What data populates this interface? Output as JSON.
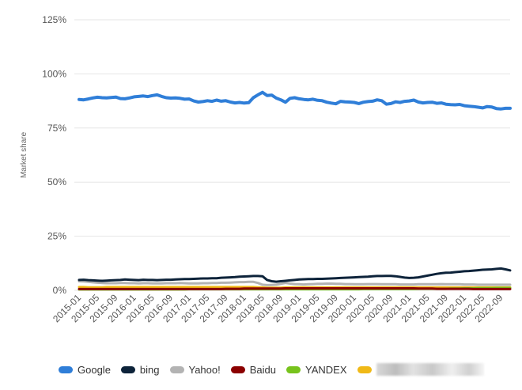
{
  "chart_data": {
    "type": "line",
    "ylabel": "Market share",
    "xlabel": "",
    "ylim": [
      0,
      125
    ],
    "y_ticks": [
      "0%",
      "25%",
      "50%",
      "75%",
      "100%",
      "125%"
    ],
    "y_tick_values": [
      0,
      25,
      50,
      75,
      100,
      125
    ],
    "grid": "horizontal",
    "legend_position": "bottom",
    "x_tick_labels": [
      "2015-01",
      "2015-05",
      "2015-09",
      "2016-01",
      "2016-05",
      "2016-09",
      "2017-01",
      "2017-05",
      "2017-09",
      "2018-01",
      "2018-05",
      "2018-09",
      "2019-01",
      "2019-05",
      "2019-09",
      "2020-01",
      "2020-05",
      "2020-09",
      "2021-01",
      "2021-05",
      "2021-09",
      "2022-01",
      "2022-05",
      "2022-09"
    ],
    "x_tick_index": [
      0,
      4,
      8,
      12,
      16,
      20,
      24,
      28,
      32,
      36,
      40,
      44,
      48,
      52,
      56,
      60,
      64,
      68,
      72,
      76,
      80,
      84,
      88,
      92
    ],
    "x_start": "2015-01",
    "series": [
      {
        "name": "Google",
        "color": "#2f7ed8",
        "values": [
          88.2,
          88.0,
          88.4,
          88.9,
          89.2,
          89.0,
          88.9,
          89.1,
          89.3,
          88.6,
          88.5,
          88.9,
          89.4,
          89.6,
          89.8,
          89.5,
          90.0,
          90.3,
          89.6,
          89.0,
          88.8,
          88.9,
          88.7,
          88.3,
          88.4,
          87.5,
          87.0,
          87.2,
          87.6,
          87.3,
          87.9,
          87.4,
          87.6,
          87.0,
          86.6,
          86.8,
          86.5,
          86.7,
          89.0,
          90.3,
          91.5,
          90.0,
          90.2,
          88.8,
          88.0,
          86.9,
          88.7,
          89.0,
          88.5,
          88.2,
          88.0,
          88.3,
          87.8,
          87.6,
          86.9,
          86.5,
          86.2,
          87.3,
          87.1,
          87.0,
          86.8,
          86.3,
          86.9,
          87.2,
          87.4,
          88.0,
          87.6,
          86.0,
          86.3,
          87.1,
          86.8,
          87.3,
          87.5,
          87.9,
          87.0,
          86.6,
          86.8,
          86.9,
          86.4,
          86.6,
          86.0,
          85.8,
          85.7,
          85.9,
          85.3,
          85.1,
          84.9,
          84.6,
          84.3,
          84.9,
          84.7,
          84.0,
          83.8,
          84.1,
          84.1
        ]
      },
      {
        "name": "bing",
        "color": "#0d233a",
        "values": [
          4.8,
          4.9,
          4.7,
          4.6,
          4.5,
          4.4,
          4.5,
          4.6,
          4.7,
          4.8,
          5.0,
          4.9,
          4.8,
          4.7,
          4.9,
          4.8,
          4.8,
          4.7,
          4.8,
          4.9,
          4.9,
          5.0,
          5.1,
          5.2,
          5.2,
          5.3,
          5.4,
          5.5,
          5.5,
          5.6,
          5.6,
          5.8,
          5.9,
          6.0,
          6.1,
          6.3,
          6.4,
          6.5,
          6.6,
          6.6,
          6.5,
          4.8,
          4.2,
          4.0,
          4.2,
          4.4,
          4.6,
          4.8,
          5.0,
          5.1,
          5.2,
          5.2,
          5.3,
          5.3,
          5.4,
          5.5,
          5.6,
          5.7,
          5.8,
          5.9,
          6.0,
          6.1,
          6.2,
          6.3,
          6.5,
          6.6,
          6.6,
          6.7,
          6.7,
          6.5,
          6.2,
          5.9,
          5.7,
          5.8,
          6.0,
          6.4,
          6.8,
          7.2,
          7.6,
          7.9,
          8.1,
          8.2,
          8.4,
          8.6,
          8.8,
          8.9,
          9.1,
          9.3,
          9.5,
          9.6,
          9.7,
          9.9,
          10.1,
          9.7,
          9.2
        ]
      },
      {
        "name": "Yahoo!",
        "color": "#b3b3b3",
        "values": [
          4.2,
          4.1,
          3.9,
          3.7,
          3.5,
          3.4,
          3.3,
          3.3,
          3.3,
          3.4,
          3.4,
          3.3,
          3.3,
          3.2,
          3.3,
          3.3,
          3.2,
          3.2,
          3.2,
          3.3,
          3.3,
          3.3,
          3.4,
          3.3,
          3.2,
          3.2,
          3.2,
          3.3,
          3.3,
          3.4,
          3.4,
          3.5,
          3.5,
          3.6,
          3.7,
          3.8,
          3.8,
          3.9,
          3.9,
          3.4,
          2.6,
          2.4,
          2.5,
          2.6,
          3.0,
          3.4,
          3.1,
          2.9,
          2.8,
          2.7,
          2.8,
          2.9,
          3.0,
          3.0,
          3.1,
          3.1,
          3.0,
          3.0,
          2.9,
          2.9,
          2.8,
          2.8,
          2.8,
          2.9,
          2.9,
          2.9,
          2.8,
          2.8,
          2.8,
          2.8,
          2.7,
          2.7,
          2.7,
          2.7,
          2.8,
          2.8,
          2.8,
          2.8,
          2.8,
          2.9,
          2.8,
          2.8,
          2.8,
          2.8,
          2.7,
          2.7,
          2.7,
          2.6,
          2.6,
          2.6,
          2.6,
          2.6,
          2.6,
          2.6,
          2.6
        ]
      },
      {
        "name": "Baidu",
        "color": "#8b0000",
        "values": [
          0.6,
          0.6,
          0.6,
          0.6,
          0.6,
          0.6,
          0.6,
          0.6,
          0.6,
          0.6,
          0.6,
          0.6,
          0.6,
          0.6,
          0.6,
          0.6,
          0.6,
          0.6,
          0.6,
          0.6,
          0.6,
          0.6,
          0.6,
          0.6,
          0.6,
          0.6,
          0.6,
          0.6,
          0.6,
          0.6,
          0.6,
          0.6,
          0.7,
          0.7,
          0.7,
          0.7,
          0.8,
          0.8,
          0.8,
          0.8,
          0.8,
          0.8,
          0.8,
          0.8,
          0.8,
          0.9,
          0.9,
          0.9,
          0.9,
          0.9,
          0.9,
          0.9,
          0.9,
          0.9,
          0.9,
          0.9,
          0.9,
          0.9,
          0.9,
          0.9,
          0.9,
          0.9,
          0.9,
          0.9,
          0.9,
          0.9,
          0.9,
          0.9,
          0.9,
          0.9,
          0.9,
          0.9,
          0.9,
          0.9,
          0.8,
          0.8,
          0.8,
          0.8,
          0.7,
          0.7,
          0.7,
          0.7,
          0.7,
          0.7,
          0.7,
          0.7,
          0.6,
          0.6,
          0.6,
          0.6,
          0.6,
          0.6,
          0.6,
          0.6,
          0.6
        ]
      },
      {
        "name": "YANDEX",
        "color": "#77c31c",
        "values": [
          0.4,
          0.4,
          0.4,
          0.4,
          0.4,
          0.4,
          0.4,
          0.4,
          0.4,
          0.4,
          0.4,
          0.4,
          0.4,
          0.4,
          0.4,
          0.4,
          0.4,
          0.4,
          0.4,
          0.4,
          0.4,
          0.4,
          0.4,
          0.4,
          0.5,
          0.5,
          0.5,
          0.5,
          0.5,
          0.5,
          0.5,
          0.5,
          0.5,
          0.5,
          0.5,
          0.5,
          0.5,
          0.5,
          0.5,
          0.5,
          0.5,
          0.5,
          0.5,
          0.5,
          0.5,
          0.5,
          0.5,
          0.5,
          0.5,
          0.5,
          0.5,
          0.5,
          0.5,
          0.5,
          0.5,
          0.5,
          0.5,
          0.5,
          0.5,
          0.5,
          0.5,
          0.5,
          0.6,
          0.6,
          0.6,
          0.6,
          0.6,
          0.6,
          0.6,
          0.6,
          0.6,
          0.6,
          0.6,
          0.6,
          0.7,
          0.7,
          0.7,
          0.7,
          0.7,
          0.7,
          0.7,
          0.8,
          0.8,
          0.8,
          0.9,
          0.9,
          0.9,
          1.0,
          1.0,
          1.0,
          1.0,
          1.1,
          1.1,
          1.1,
          1.1
        ]
      },
      {
        "name": "",
        "legend_obscured": true,
        "color": "#f0b917",
        "values": [
          1.5,
          1.5,
          1.4,
          1.4,
          1.4,
          1.4,
          1.5,
          1.5,
          1.5,
          1.5,
          1.5,
          1.5,
          1.5,
          1.5,
          1.5,
          1.5,
          1.5,
          1.5,
          1.5,
          1.5,
          1.5,
          1.5,
          1.5,
          1.5,
          1.5,
          1.5,
          1.5,
          1.5,
          1.5,
          1.5,
          1.5,
          1.5,
          1.5,
          1.5,
          1.5,
          1.5,
          1.5,
          1.5,
          1.5,
          1.4,
          1.3,
          1.2,
          1.2,
          1.2,
          1.2,
          1.3,
          1.3,
          1.3,
          1.3,
          1.3,
          1.3,
          1.3,
          1.3,
          1.3,
          1.3,
          1.3,
          1.3,
          1.3,
          1.3,
          1.3,
          1.3,
          1.3,
          1.3,
          1.3,
          1.3,
          1.3,
          1.3,
          1.3,
          1.3,
          1.3,
          1.3,
          1.3,
          1.3,
          1.3,
          1.3,
          1.3,
          1.3,
          1.3,
          1.3,
          1.3,
          1.3,
          1.3,
          1.3,
          1.3,
          1.3,
          1.3,
          1.3,
          1.3,
          1.3,
          1.3,
          1.3,
          1.3,
          1.3,
          1.3,
          1.3
        ]
      }
    ]
  }
}
